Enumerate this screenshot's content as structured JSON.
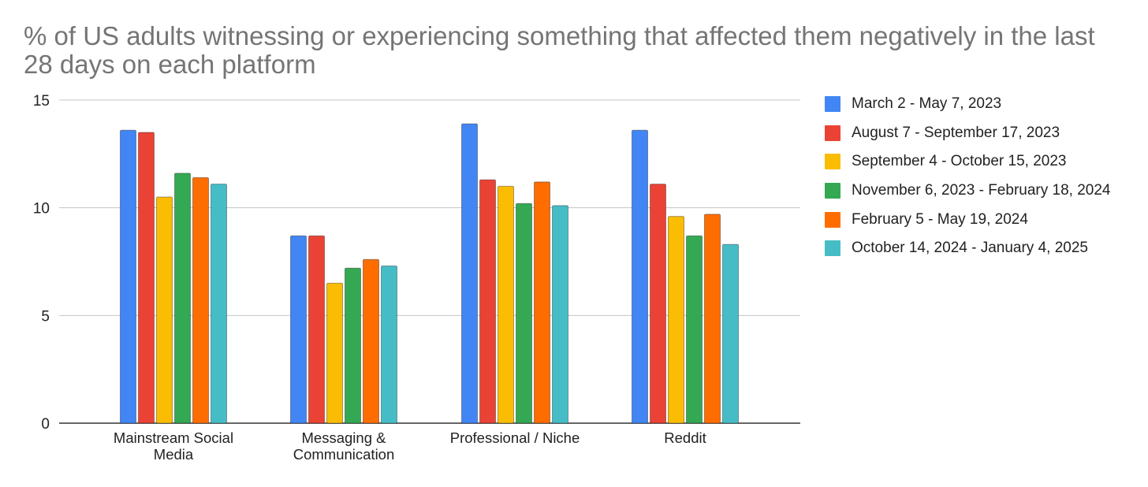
{
  "chart_data": {
    "type": "bar",
    "title": "% of US adults witnessing or experiencing something that affected them negatively in the last 28 days on each platform",
    "categories": [
      [
        "Mainstream Social",
        "Media"
      ],
      [
        "Messaging &",
        "Communication"
      ],
      [
        "Professional / Niche"
      ],
      [
        "Reddit"
      ]
    ],
    "series": [
      {
        "name": "March 2 - May 7, 2023",
        "color": "#4285F4",
        "values": [
          13.6,
          8.7,
          13.9,
          13.6
        ]
      },
      {
        "name": "August 7 - September 17, 2023",
        "color": "#EA4335",
        "values": [
          13.5,
          8.7,
          11.3,
          11.1
        ]
      },
      {
        "name": "September 4 - October 15, 2023",
        "color": "#FBBC04",
        "values": [
          10.5,
          6.5,
          11.0,
          9.6
        ]
      },
      {
        "name": "November 6, 2023 - February 18, 2024",
        "color": "#34A853",
        "values": [
          11.6,
          7.2,
          10.2,
          8.7
        ]
      },
      {
        "name": "February 5 - May 19, 2024",
        "color": "#FF6D01",
        "values": [
          11.4,
          7.6,
          11.2,
          9.7
        ]
      },
      {
        "name": "October 14, 2024 - January 4, 2025",
        "color": "#46BDC6",
        "values": [
          11.1,
          7.3,
          10.1,
          8.3
        ]
      }
    ],
    "yticks": [
      0,
      5,
      10,
      15
    ],
    "ylim": [
      0,
      15
    ],
    "xlabel": "",
    "ylabel": "",
    "grid": true,
    "legend_position": "right"
  }
}
